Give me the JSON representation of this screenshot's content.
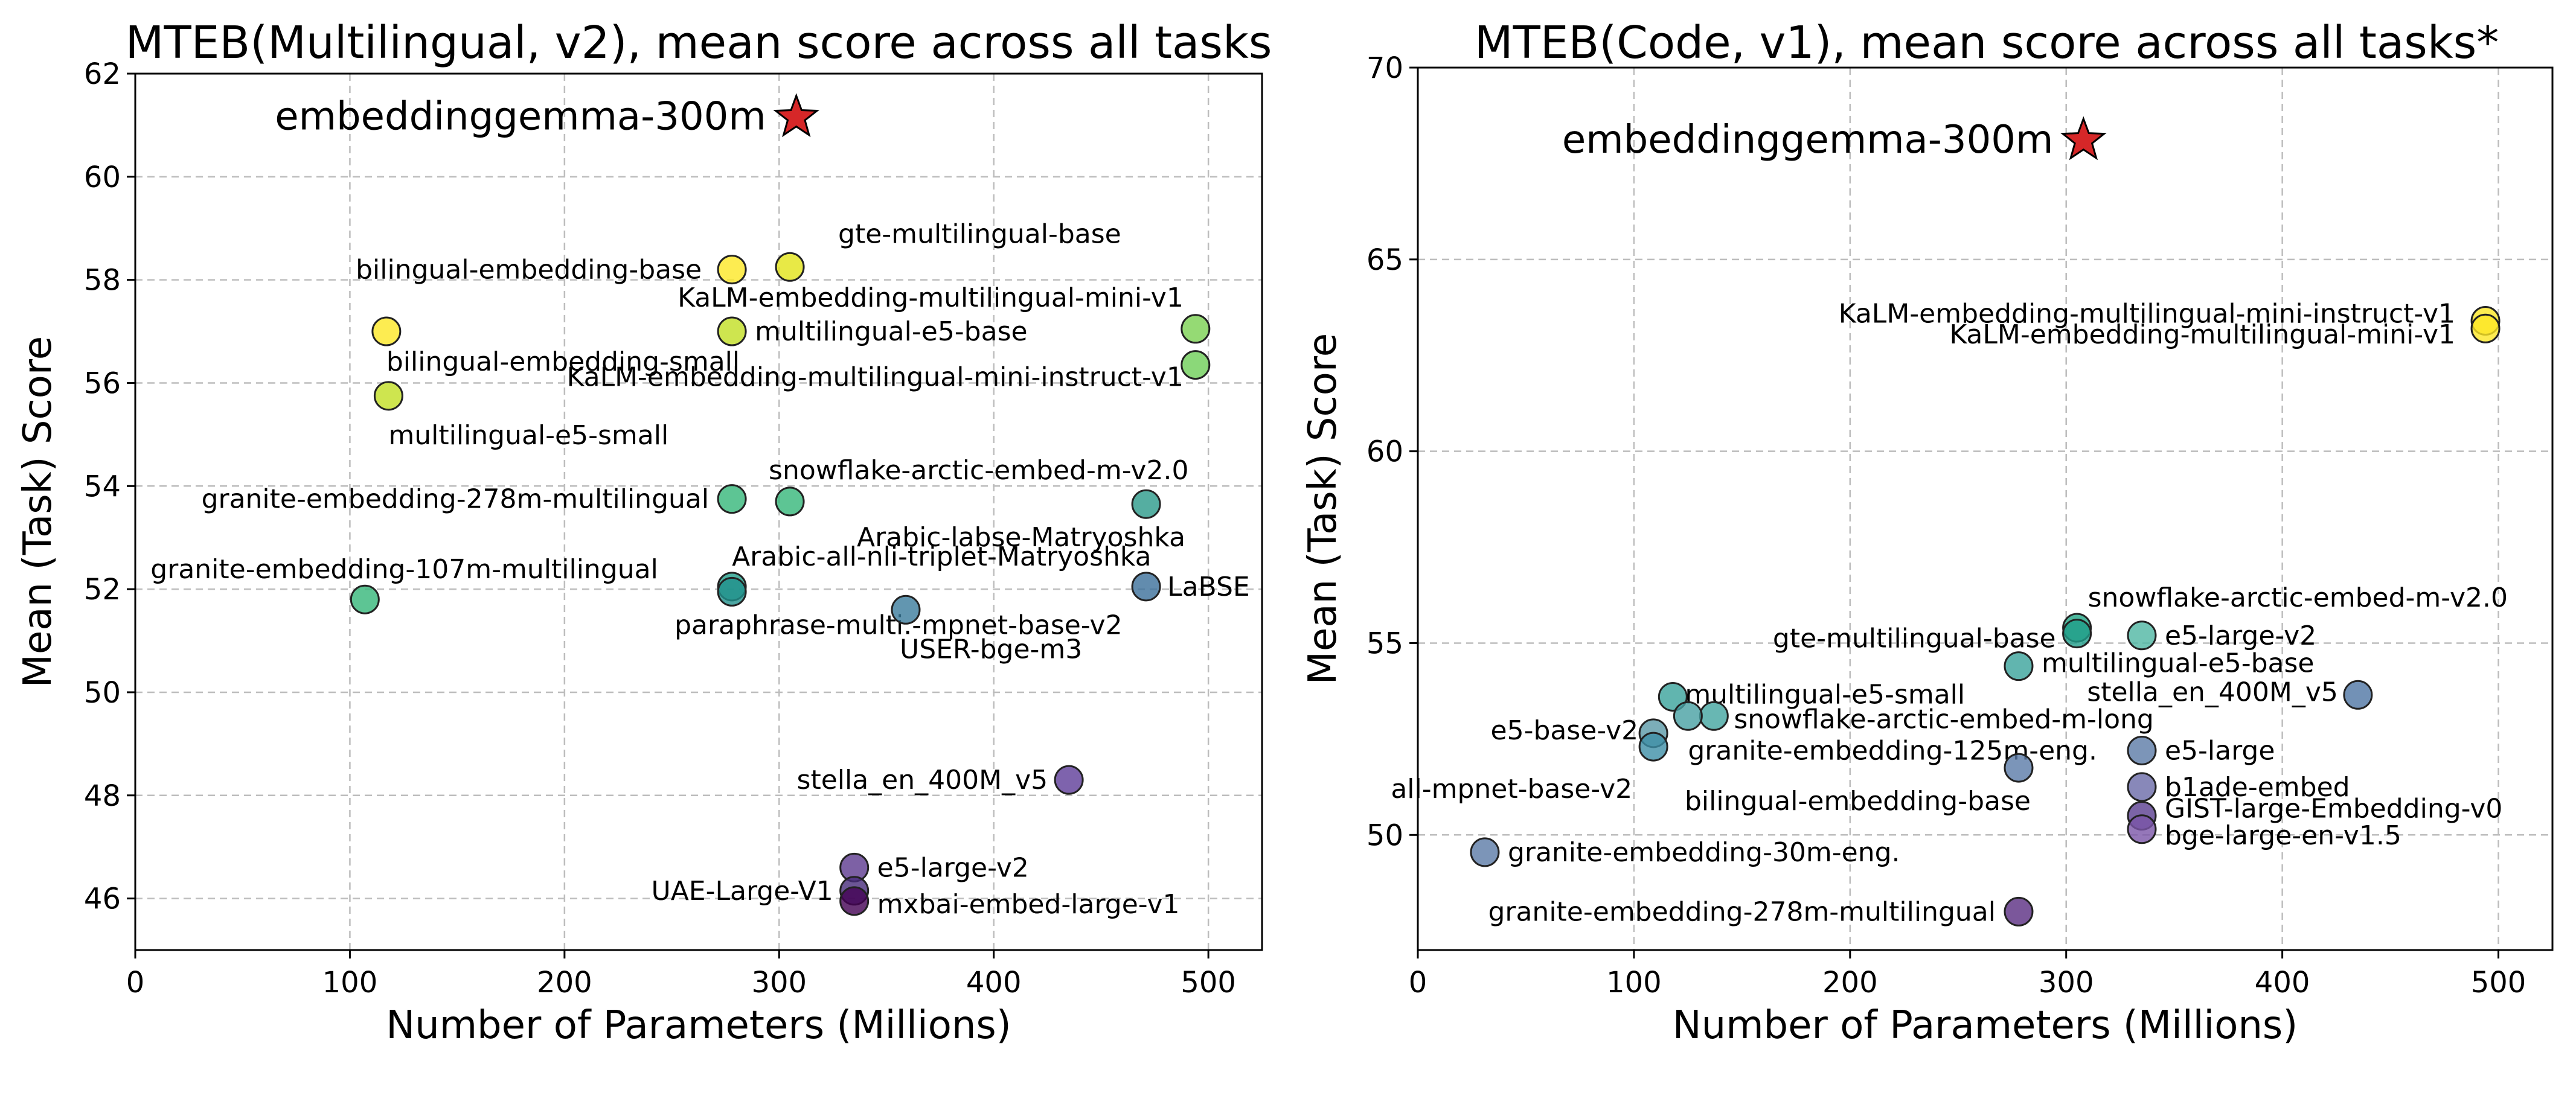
{
  "chart_data": [
    {
      "type": "scatter",
      "title": "MTEB(Multilingual, v2), mean score across all tasks",
      "xlabel": "Number of Parameters (Millions)",
      "ylabel": "Mean (Task) Score",
      "xlim": [
        0,
        525
      ],
      "ylim": [
        45,
        62
      ],
      "xticks": [
        0,
        100,
        200,
        300,
        400,
        500
      ],
      "yticks": [
        46,
        48,
        50,
        52,
        54,
        56,
        58,
        60,
        62
      ],
      "grid": true,
      "highlight": {
        "name": "embeddinggemma-300m",
        "x": 308,
        "y": 61.15,
        "marker": "star",
        "color": "#d62728"
      },
      "points": [
        {
          "name": "bilingual-embedding-base",
          "x": 278,
          "y": 58.2,
          "color": "#fde725"
        },
        {
          "name": "gte-multilingual-base",
          "x": 305,
          "y": 58.25,
          "color": "#e2e418"
        },
        {
          "name": "bilingual-embedding-small",
          "x": 117,
          "y": 57.0,
          "color": "#fde725"
        },
        {
          "name": "multilingual-e5-base",
          "x": 278,
          "y": 57.0,
          "color": "#c2df23"
        },
        {
          "name": "KaLM-embedding-multilingual-mini-v1",
          "x": 494,
          "y": 57.05,
          "color": "#7ad151"
        },
        {
          "name": "KaLM-embedding-multilingual-mini-instruct-v1",
          "x": 494,
          "y": 56.35,
          "color": "#6ece58"
        },
        {
          "name": "multilingual-e5-small",
          "x": 118,
          "y": 55.75,
          "color": "#c2df23"
        },
        {
          "name": "granite-embedding-278m-multilingual",
          "x": 278,
          "y": 53.75,
          "color": "#35b779"
        },
        {
          "name": "snowflake-arctic-embed-m-v2.0",
          "x": 305,
          "y": 53.7,
          "color": "#35b779"
        },
        {
          "name": "Arabic-labse-Matryoshka",
          "x": 471,
          "y": 53.65,
          "color": "#2a9a8a"
        },
        {
          "name": "Arabic-all-nli-triplet-Matryoshka",
          "x": 278,
          "y": 52.05,
          "color": "#1f9e89"
        },
        {
          "name": "paraphrase-multi.-mpnet-base-v2",
          "x": 278,
          "y": 51.95,
          "color": "#21918c"
        },
        {
          "name": "granite-embedding-107m-multilingual",
          "x": 107,
          "y": 51.8,
          "color": "#35b779"
        },
        {
          "name": "USER-bge-m3",
          "x": 359,
          "y": 51.6,
          "color": "#3b7c9c"
        },
        {
          "name": "LaBSE",
          "x": 471,
          "y": 52.05,
          "color": "#3b6f9a"
        },
        {
          "name": "stella_en_400M_v5",
          "x": 435,
          "y": 48.3,
          "color": "#5e3c99"
        },
        {
          "name": "e5-large-v2",
          "x": 335,
          "y": 46.6,
          "color": "#5c3a8f"
        },
        {
          "name": "UAE-Large-V1",
          "x": 335,
          "y": 46.15,
          "color": "#472c7a"
        },
        {
          "name": "mxbai-embed-large-v1",
          "x": 335,
          "y": 45.95,
          "color": "#440154"
        }
      ]
    },
    {
      "type": "scatter",
      "title": "MTEB(Code, v1), mean score across all tasks*",
      "xlabel": "Number of Parameters (Millions)",
      "ylabel": "Mean (Task) Score",
      "xlim": [
        0,
        525
      ],
      "ylim": [
        47,
        70
      ],
      "xticks": [
        0,
        100,
        200,
        300,
        400,
        500
      ],
      "yticks": [
        50,
        55,
        60,
        65,
        70
      ],
      "grid": true,
      "highlight": {
        "name": "embeddinggemma-300m",
        "x": 308,
        "y": 68.1,
        "marker": "star",
        "color": "#d62728"
      },
      "points": [
        {
          "name": "KaLM-embedding-multilingual-mini-instruct-v1",
          "x": 494,
          "y": 63.4,
          "color": "#fde725"
        },
        {
          "name": "KaLM-embedding-multilingual-mini-v1",
          "x": 494,
          "y": 63.2,
          "color": "#fde725"
        },
        {
          "name": "snowflake-arctic-embed-m-v2.0",
          "x": 305,
          "y": 55.4,
          "color": "#21a585"
        },
        {
          "name": "gte-multilingual-base",
          "x": 305,
          "y": 55.25,
          "color": "#1f9e89"
        },
        {
          "name": "e5-large-v2",
          "x": 335,
          "y": 55.2,
          "color": "#4fb7a3"
        },
        {
          "name": "multilingual-e5-base",
          "x": 278,
          "y": 54.4,
          "color": "#3aa39b"
        },
        {
          "name": "stella_en_400M_v5",
          "x": 435,
          "y": 53.65,
          "color": "#4f75a4"
        },
        {
          "name": "multilingual-e5-small",
          "x": 118,
          "y": 53.6,
          "color": "#3aa39b"
        },
        {
          "name": "snowflake-arctic-embed-m-long",
          "x": 137,
          "y": 53.1,
          "color": "#42a5a0"
        },
        {
          "name": "e5-base-v2",
          "x": 109,
          "y": 52.65,
          "color": "#5b9aa7"
        },
        {
          "name": "granite-embedding-125m-eng.",
          "x": 125,
          "y": 53.1,
          "color": "#47a0a3"
        },
        {
          "name": "all-mpnet-base-v2",
          "x": 109,
          "y": 52.3,
          "color": "#3d8fa6"
        },
        {
          "name": "e5-large",
          "x": 335,
          "y": 52.2,
          "color": "#5b7ba6"
        },
        {
          "name": "bilingual-embedding-base",
          "x": 278,
          "y": 51.75,
          "color": "#5a7ba8"
        },
        {
          "name": "b1ade-embed",
          "x": 335,
          "y": 51.25,
          "color": "#6a6aa8"
        },
        {
          "name": "GIST-large-Embedding-v0",
          "x": 335,
          "y": 50.5,
          "color": "#5a3d90"
        },
        {
          "name": "bge-large-en-v1.5",
          "x": 335,
          "y": 50.15,
          "color": "#7a55a8"
        },
        {
          "name": "granite-embedding-30m-eng.",
          "x": 31,
          "y": 49.55,
          "color": "#5b7ba6"
        },
        {
          "name": "granite-embedding-278m-multilingual",
          "x": 278,
          "y": 48.0,
          "color": "#5a2d82"
        }
      ]
    }
  ]
}
